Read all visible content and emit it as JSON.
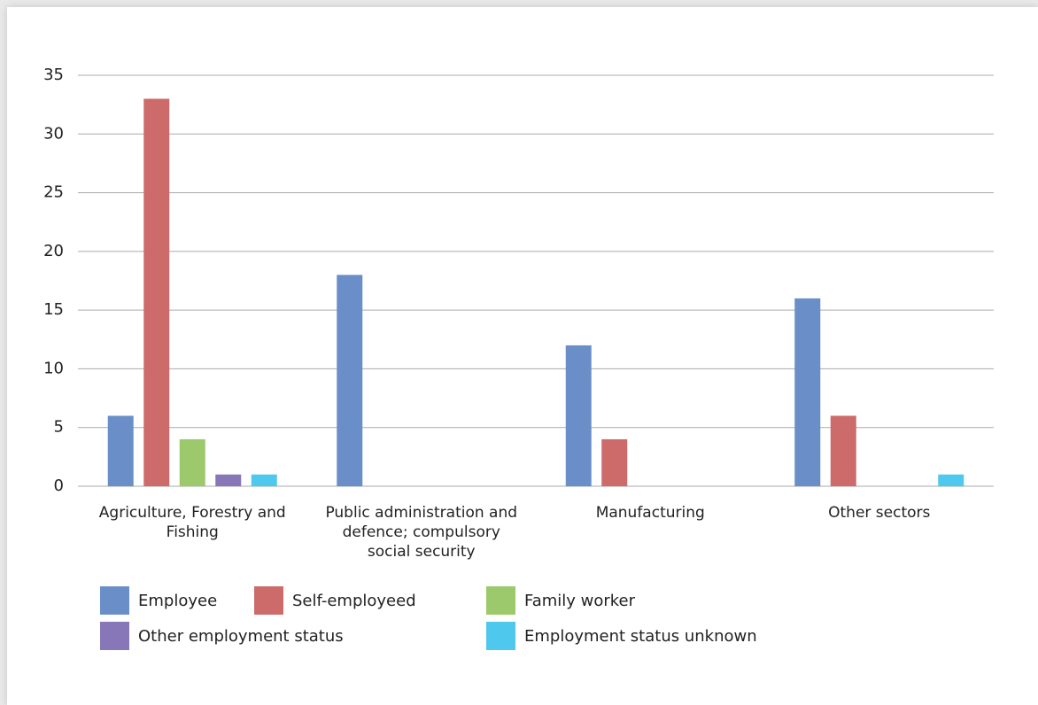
{
  "chart_data": {
    "type": "bar",
    "categories": [
      "Agriculture, Forestry and Fishing",
      "Public administration and defence; compulsory social security",
      "Manufacturing",
      "Other sectors"
    ],
    "series": [
      {
        "name": "Employee",
        "color": "#6a8fc8",
        "values": [
          6,
          18,
          12,
          16
        ]
      },
      {
        "name": "Self-employeed",
        "color": "#cd6b6b",
        "values": [
          33,
          null,
          4,
          6
        ]
      },
      {
        "name": "Family worker",
        "color": "#9cc96b",
        "values": [
          4,
          null,
          null,
          null
        ]
      },
      {
        "name": "Other employment status",
        "color": "#8877b8",
        "values": [
          1,
          null,
          null,
          null
        ]
      },
      {
        "name": "Employment status unknown",
        "color": "#4fc8ee",
        "values": [
          1,
          null,
          null,
          1
        ]
      }
    ],
    "ylim": [
      0,
      35
    ],
    "yticks": [
      0,
      5,
      10,
      15,
      20,
      25,
      30,
      35
    ],
    "grid": true,
    "legend": "bottom"
  }
}
